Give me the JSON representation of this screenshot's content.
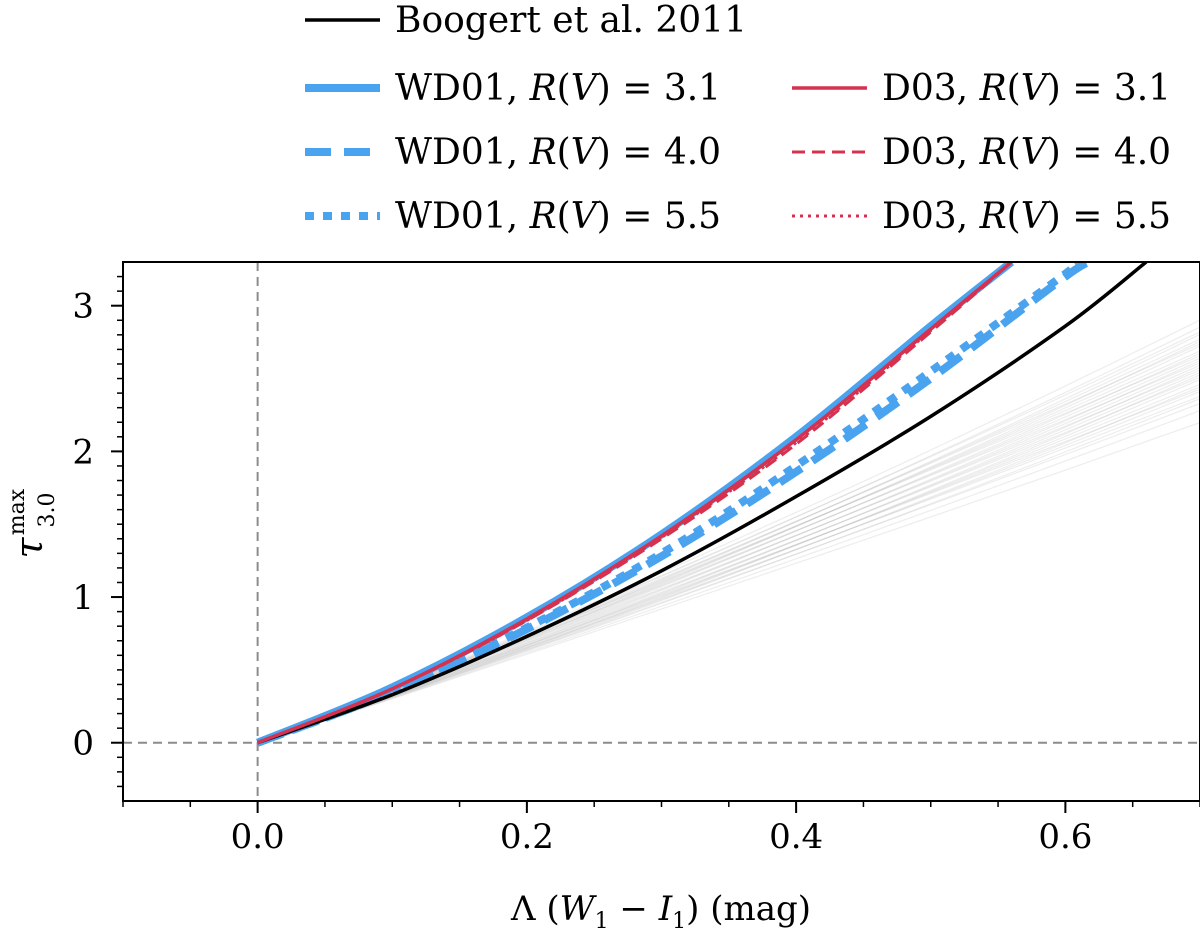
{
  "chart_data": {
    "type": "line",
    "xlabel": {
      "prefix": "Λ (",
      "var": "W",
      "sub1": "1",
      "minus": " − ",
      "var2": "I",
      "sub2": "1",
      "suffix": ") (mag)"
    },
    "ylabel": {
      "main": "τ",
      "sup": "max",
      "sub": "3.0"
    },
    "xlim": [
      -0.1,
      0.7
    ],
    "ylim": [
      -0.4,
      3.3
    ],
    "xticks": [
      {
        "value": 0.0,
        "label": "0.0"
      },
      {
        "value": 0.2,
        "label": "0.2"
      },
      {
        "value": 0.4,
        "label": "0.4"
      },
      {
        "value": 0.6,
        "label": "0.6"
      }
    ],
    "yticks": [
      {
        "value": 0,
        "label": "0"
      },
      {
        "value": 1,
        "label": "1"
      },
      {
        "value": 2,
        "label": "2"
      },
      {
        "value": 3,
        "label": "3"
      }
    ],
    "reference_lines": {
      "x": 0,
      "y": 0
    },
    "legend_position": "above plot",
    "series": [
      {
        "legend_label": "Boogert et al. 2011",
        "color": "#000000",
        "style": "solid-thin",
        "x": [
          0.0,
          0.1,
          0.2,
          0.3,
          0.4,
          0.5,
          0.6,
          0.66
        ],
        "y": [
          0.0,
          0.33,
          0.73,
          1.18,
          1.69,
          2.24,
          2.86,
          3.3
        ]
      },
      {
        "legend_label": "WD01, R(V) = 3.1",
        "model": "WD01",
        "rv": "3.1",
        "color": "#4aa3ef",
        "style": "solid-thick",
        "x": [
          0.0,
          0.1,
          0.2,
          0.3,
          0.4,
          0.5,
          0.56
        ],
        "y": [
          0.0,
          0.38,
          0.86,
          1.43,
          2.1,
          2.86,
          3.3
        ]
      },
      {
        "legend_label": "WD01, R(V) = 4.0",
        "model": "WD01",
        "rv": "4.0",
        "color": "#4aa3ef",
        "style": "dashed-thick",
        "x": [
          0.0,
          0.1,
          0.2,
          0.3,
          0.4,
          0.5,
          0.6,
          0.62
        ],
        "y": [
          0.0,
          0.35,
          0.78,
          1.28,
          1.86,
          2.5,
          3.2,
          3.3
        ]
      },
      {
        "legend_label": "WD01, R(V) = 5.5",
        "model": "WD01",
        "rv": "5.5",
        "color": "#4aa3ef",
        "style": "dotted-thick",
        "x": [
          0.0,
          0.1,
          0.2,
          0.3,
          0.4,
          0.5,
          0.6,
          0.61
        ],
        "y": [
          0.0,
          0.35,
          0.79,
          1.3,
          1.9,
          2.55,
          3.22,
          3.3
        ]
      },
      {
        "legend_label": "D03, R(V) = 3.1",
        "model": "D03",
        "rv": "3.1",
        "color": "#d6314f",
        "style": "solid-thin",
        "x": [
          0.0,
          0.1,
          0.2,
          0.3,
          0.4,
          0.5,
          0.56
        ],
        "y": [
          0.0,
          0.37,
          0.85,
          1.42,
          2.08,
          2.84,
          3.3
        ]
      },
      {
        "legend_label": "D03, R(V) = 4.0",
        "model": "D03",
        "rv": "4.0",
        "color": "#d6314f",
        "style": "dashed-thin",
        "x": [
          0.0,
          0.1,
          0.2,
          0.3,
          0.4,
          0.5,
          0.56
        ],
        "y": [
          0.0,
          0.37,
          0.84,
          1.4,
          2.05,
          2.82,
          3.3
        ]
      },
      {
        "legend_label": "D03, R(V) = 5.5",
        "model": "D03",
        "rv": "5.5",
        "color": "#d6314f",
        "style": "dotted-thin",
        "x": [
          0.0,
          0.1,
          0.2,
          0.3,
          0.4,
          0.5,
          0.56
        ],
        "y": [
          0.0,
          0.37,
          0.84,
          1.41,
          2.06,
          2.83,
          3.3
        ]
      }
    ],
    "uncertainty_band": {
      "color": "#9a9a9a",
      "description_count": 30,
      "slope_range": [
        0.3,
        0.37
      ],
      "curvature_range": [
        0.2,
        0.75
      ]
    }
  }
}
